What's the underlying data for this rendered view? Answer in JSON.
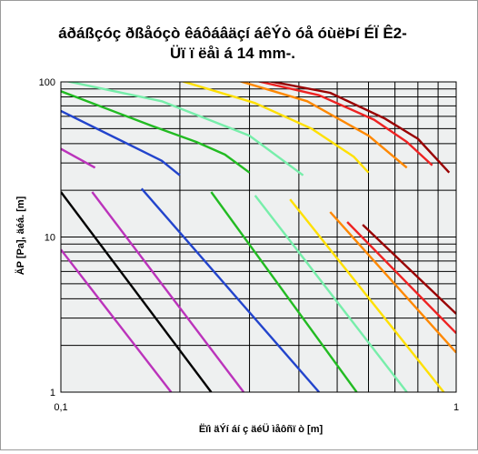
{
  "chart_data": {
    "type": "line",
    "title_lines": [
      "áðáßçóç ðßåóçò êáôáâäçí áêÝò óå óùëÞí ÉÏ Ê2-",
      "Üï ï ëåì á 14 mm-."
    ],
    "xlabel": "Ëïì äÝí áí ç äéÜ ìåôñï ò [m]",
    "ylabel": "ÄP [Pa], äéá. [m]",
    "x_scale": "log",
    "y_scale": "log",
    "xlim": [
      0.1,
      1
    ],
    "ylim": [
      1,
      100
    ],
    "x_tick_labels": [
      {
        "v": 0.1,
        "t": "0,1"
      },
      {
        "v": 1,
        "t": "1"
      }
    ],
    "y_tick_labels": [
      {
        "v": 100,
        "t": "100"
      },
      {
        "v": 10,
        "t": "10"
      },
      {
        "v": 1,
        "t": "1"
      }
    ],
    "grid": true,
    "plot_background": "#eef0f0",
    "series": [
      {
        "color": "#000000",
        "points": [
          [
            0.1,
            19.5
          ],
          [
            0.24,
            1
          ]
        ]
      },
      {
        "color": "#bb33bb",
        "points": [
          [
            0.1,
            8.3
          ],
          [
            0.19,
            1
          ]
        ]
      },
      {
        "color": "#bb33bb",
        "points": [
          [
            0.12,
            19.5
          ],
          [
            0.29,
            1
          ]
        ]
      },
      {
        "color": "#bb33bb",
        "points": [
          [
            0.1,
            37
          ],
          [
            0.122,
            28
          ]
        ]
      },
      {
        "color": "#2244cc",
        "points": [
          [
            0.16,
            20.5
          ],
          [
            0.45,
            1
          ]
        ]
      },
      {
        "color": "#2244cc",
        "points": [
          [
            0.1,
            65
          ],
          [
            0.16,
            36
          ],
          [
            0.18,
            31
          ],
          [
            0.2,
            25
          ]
        ]
      },
      {
        "color": "#22bb22",
        "points": [
          [
            0.24,
            19.5
          ],
          [
            0.56,
            1
          ]
        ]
      },
      {
        "color": "#22bb22",
        "points": [
          [
            0.1,
            87
          ],
          [
            0.17,
            52
          ],
          [
            0.22,
            41
          ],
          [
            0.26,
            34
          ],
          [
            0.3,
            26
          ]
        ]
      },
      {
        "color": "#77eeaa",
        "points": [
          [
            0.31,
            18.5
          ],
          [
            0.75,
            1
          ]
        ]
      },
      {
        "color": "#77eeaa",
        "points": [
          [
            0.1,
            103
          ],
          [
            0.18,
            75
          ],
          [
            0.3,
            45
          ],
          [
            0.41,
            25
          ]
        ]
      },
      {
        "color": "#ffe000",
        "points": [
          [
            0.38,
            17.5
          ],
          [
            0.93,
            1
          ]
        ]
      },
      {
        "color": "#ffe000",
        "points": [
          [
            0.2,
            102
          ],
          [
            0.31,
            73
          ],
          [
            0.43,
            50
          ],
          [
            0.55,
            33
          ],
          [
            0.6,
            26
          ]
        ]
      },
      {
        "color": "#ff8800",
        "points": [
          [
            0.48,
            14.5
          ],
          [
            1,
            1.8
          ]
        ]
      },
      {
        "color": "#ff8800",
        "points": [
          [
            0.28,
            102
          ],
          [
            0.42,
            75
          ],
          [
            0.6,
            45
          ],
          [
            0.75,
            28
          ]
        ]
      },
      {
        "color": "#ee2222",
        "points": [
          [
            0.53,
            12.5
          ],
          [
            1,
            2.4
          ]
        ]
      },
      {
        "color": "#ee2222",
        "points": [
          [
            0.31,
            102
          ],
          [
            0.45,
            82
          ],
          [
            0.62,
            57
          ],
          [
            0.75,
            41
          ],
          [
            0.87,
            29
          ]
        ]
      },
      {
        "color": "#990000",
        "points": [
          [
            0.58,
            12
          ],
          [
            1,
            3.2
          ]
        ]
      },
      {
        "color": "#990000",
        "points": [
          [
            0.33,
            102
          ],
          [
            0.48,
            85
          ],
          [
            0.66,
            58
          ],
          [
            0.8,
            43
          ],
          [
            0.96,
            26
          ]
        ]
      }
    ]
  }
}
